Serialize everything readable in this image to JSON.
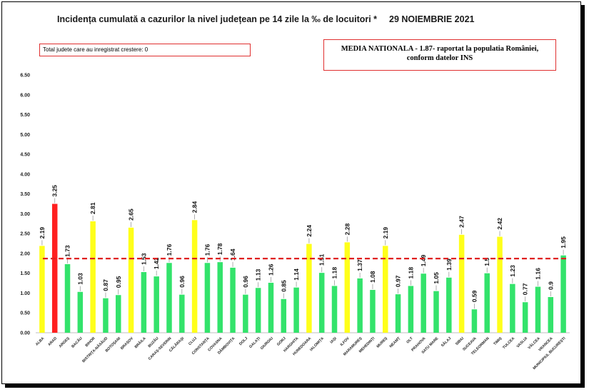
{
  "header": {
    "title": "Incidența cumulată a cazurilor la nivel județean pe 14 zile la ‰ de locuitori *",
    "date": "29 NOIEMBRIE 2021"
  },
  "counter_label": "Total judete care au inregistrat crestere: 0",
  "media_label": {
    "line1": "MEDIA NATIONALA - 1.87-  raportat la populatia României,",
    "line2": "conform datelor INS"
  },
  "colors": {
    "green": "#33e36b",
    "yellow": "#ffff1a",
    "red": "#ff2020",
    "reference_line": "#e02020",
    "box_border": "#e03030"
  },
  "chart_data": {
    "type": "bar",
    "title": "Incidența cumulată a cazurilor la nivel județean pe 14 zile la ‰ de locuitori *",
    "xlabel": "",
    "ylabel": "",
    "ylim": [
      0,
      6.5
    ],
    "yticks": [
      "0.00",
      "0.50",
      "1.00",
      "1.50",
      "2.00",
      "2.50",
      "3.00",
      "3.50",
      "4.00",
      "4.50",
      "5.00",
      "5.50",
      "6.00",
      "6.50"
    ],
    "reference_line": 1.87,
    "grid": false,
    "categories": [
      "ALBA",
      "ARAD",
      "ARGEȘ",
      "BACĂU",
      "BIHOR",
      "BISTRIȚA-NĂSĂUD",
      "BOTOȘANI",
      "BRAȘOV",
      "BRĂILA",
      "BUZĂU",
      "CARAȘ-SEVERIN",
      "CĂLĂRAȘI",
      "CLUJ",
      "CONSTANȚA",
      "COVASNA",
      "DÂMBOVIȚA",
      "DOLJ",
      "GALAȚI",
      "GIURGIU",
      "GORJ",
      "HARGHITA",
      "HUNEDOARA",
      "IALOMIȚA",
      "IAȘI",
      "ILFOV",
      "MARAMUREȘ",
      "MEHEDINȚI",
      "MUREȘ",
      "NEAMȚ",
      "OLT",
      "PRAHOVA",
      "SATU MARE",
      "SĂLAJ",
      "SIBIU",
      "SUCEAVA",
      "TELEORMAN",
      "TIMIȘ",
      "TULCEA",
      "VASLUI",
      "VÂLCEA",
      "VRANCEA",
      "MUNICIPIUL BUCUREȘTI"
    ],
    "values": [
      2.19,
      3.25,
      1.73,
      1.03,
      2.81,
      0.87,
      0.95,
      2.65,
      1.53,
      1.42,
      1.76,
      0.96,
      2.84,
      1.76,
      1.78,
      1.64,
      0.96,
      1.13,
      1.26,
      0.85,
      1.14,
      2.24,
      1.51,
      1.18,
      2.28,
      1.37,
      1.08,
      2.19,
      0.97,
      1.18,
      1.49,
      1.05,
      1.39,
      2.47,
      0.59,
      1.5,
      2.42,
      1.23,
      0.77,
      1.16,
      0.9,
      1.95
    ],
    "labels": [
      "2.19",
      "3.25",
      "1.73",
      "1.03",
      "2.81",
      "0.87",
      "0.95",
      "2.65",
      "1.53",
      "1.42",
      "1.76",
      "0.96",
      "2.84",
      "1.76",
      "1.78",
      "1.64",
      "0.96",
      "1.13",
      "1.26",
      "0.85",
      "1.14",
      "2.24",
      "1.51",
      "1.18",
      "2.28",
      "1.37",
      "1.08",
      "2.19",
      "0.97",
      "1.18",
      "1.49",
      "1.05",
      "1.39",
      "2.47",
      "0.59",
      "1.5",
      "2.42",
      "1.23",
      "0.77",
      "1.16",
      "0.9",
      "1.95"
    ],
    "bar_colors": [
      "yellow",
      "red",
      "green",
      "green",
      "yellow",
      "green",
      "green",
      "yellow",
      "green",
      "green",
      "green",
      "green",
      "yellow",
      "green",
      "green",
      "green",
      "green",
      "green",
      "green",
      "green",
      "green",
      "yellow",
      "green",
      "green",
      "yellow",
      "green",
      "green",
      "yellow",
      "green",
      "green",
      "green",
      "green",
      "green",
      "yellow",
      "green",
      "green",
      "yellow",
      "green",
      "green",
      "green",
      "green",
      "green"
    ]
  }
}
